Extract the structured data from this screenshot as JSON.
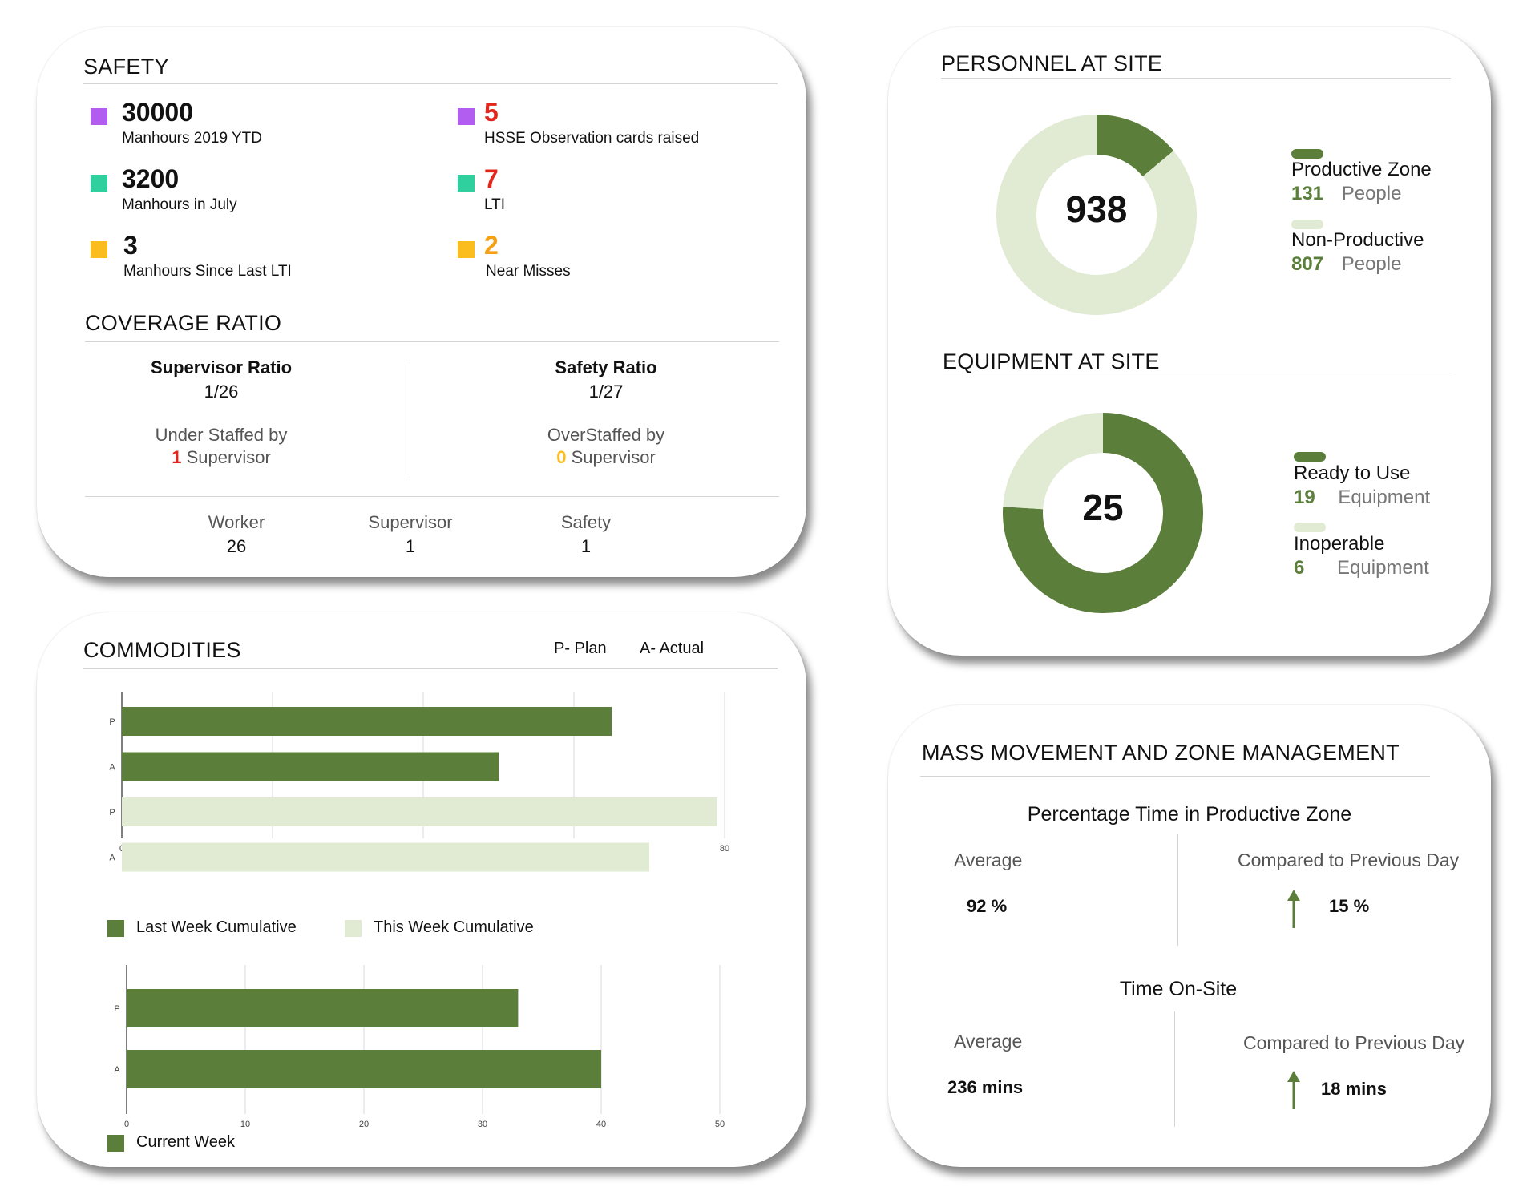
{
  "colors": {
    "dark_green": "#5b7f3b",
    "light_green": "#e1ebd4",
    "purple": "#b35cf0",
    "teal": "#2fcf9e",
    "yellow": "#fbbd1e",
    "red": "#e3261b",
    "orange": "#f6a014"
  },
  "safety": {
    "title": "SAFETY",
    "items": [
      {
        "value": "30000",
        "label": "Manhours 2019 YTD",
        "color": "#b35cf0",
        "value_color": "#111111"
      },
      {
        "value": "3200",
        "label": "Manhours in July",
        "color": "#2fcf9e",
        "value_color": "#111111"
      },
      {
        "value": "3",
        "label": "Manhours Since Last LTI",
        "color": "#fbbd1e",
        "value_color": "#111111"
      },
      {
        "value": "5",
        "label": "HSSE Observation cards raised",
        "color": "#b35cf0",
        "value_color": "#e3261b"
      },
      {
        "value": "7",
        "label": "LTI",
        "color": "#2fcf9e",
        "value_color": "#e3261b"
      },
      {
        "value": "2",
        "label": "Near Misses",
        "color": "#fbbd1e",
        "value_color": "#f6a014"
      }
    ]
  },
  "coverage": {
    "title": "COVERAGE RATIO",
    "supervisor": {
      "heading": "Supervisor Ratio",
      "ratio": "1/26",
      "status": "Under Staffed by",
      "count": "1",
      "unit": "Supervisor"
    },
    "safety": {
      "heading": "Safety Ratio",
      "ratio": "1/27",
      "status": "OverStaffed by",
      "count": "0",
      "unit": "Supervisor"
    },
    "counts": [
      {
        "label": "Worker",
        "value": "26"
      },
      {
        "label": "Supervisor",
        "value": "1"
      },
      {
        "label": "Safety",
        "value": "1"
      }
    ]
  },
  "personnel": {
    "title": "PERSONNEL AT SITE",
    "total": "938",
    "legend": [
      {
        "label": "Productive Zone",
        "value": "131",
        "unit": "People"
      },
      {
        "label": "Non-Productive",
        "value": "807",
        "unit": "People"
      }
    ]
  },
  "equipment": {
    "title": "EQUIPMENT AT SITE",
    "total": "25",
    "legend": [
      {
        "label": "Ready to Use",
        "value": "19",
        "unit": "Equipment"
      },
      {
        "label": "Inoperable",
        "value": "6",
        "unit": "Equipment"
      }
    ]
  },
  "commodities": {
    "title": "COMMODITIES",
    "key_plan": "P- Plan",
    "key_actual": "A- Actual",
    "legend_last": "Last Week Cumulative",
    "legend_this": "This Week Cumulative",
    "legend_current": "Current Week"
  },
  "chart_data": [
    {
      "type": "bar",
      "orientation": "horizontal",
      "categories": [
        "P",
        "A",
        "P",
        "A"
      ],
      "series": [
        {
          "name": "Last Week Cumulative",
          "values": [
            65,
            50,
            null,
            null
          ]
        },
        {
          "name": "This Week Cumulative",
          "values": [
            null,
            null,
            79,
            70
          ]
        }
      ],
      "xticks": [
        "0",
        "20",
        "40",
        "60",
        "80"
      ],
      "xlim": [
        0,
        80
      ],
      "grid": true,
      "legend": "bottom"
    },
    {
      "type": "bar",
      "orientation": "horizontal",
      "categories": [
        "P",
        "A"
      ],
      "series": [
        {
          "name": "Current Week",
          "values": [
            33,
            40
          ]
        }
      ],
      "xticks": [
        "0",
        "10",
        "20",
        "30",
        "40",
        "50"
      ],
      "xlim": [
        0,
        50
      ],
      "grid": true,
      "legend": "bottom"
    },
    {
      "type": "pie",
      "donut": true,
      "center_label": "938",
      "slices": [
        {
          "label": "Productive Zone",
          "value": 131
        },
        {
          "label": "Non-Productive",
          "value": 807
        }
      ]
    },
    {
      "type": "pie",
      "donut": true,
      "center_label": "25",
      "slices": [
        {
          "label": "Ready to Use",
          "value": 19
        },
        {
          "label": "Inoperable",
          "value": 6
        }
      ]
    }
  ],
  "mass_movement": {
    "title": "MASS MOVEMENT AND ZONE MANAGEMENT",
    "productive": {
      "heading": "Percentage Time in Productive Zone",
      "avg_label": "Average",
      "avg_value": "92 %",
      "cmp_label": "Compared to Previous Day",
      "cmp_value": "15 %"
    },
    "onsite": {
      "heading": "Time On-Site",
      "avg_label": "Average",
      "avg_value": "236 mins",
      "cmp_label": "Compared to Previous Day",
      "cmp_value": "18 mins"
    }
  }
}
